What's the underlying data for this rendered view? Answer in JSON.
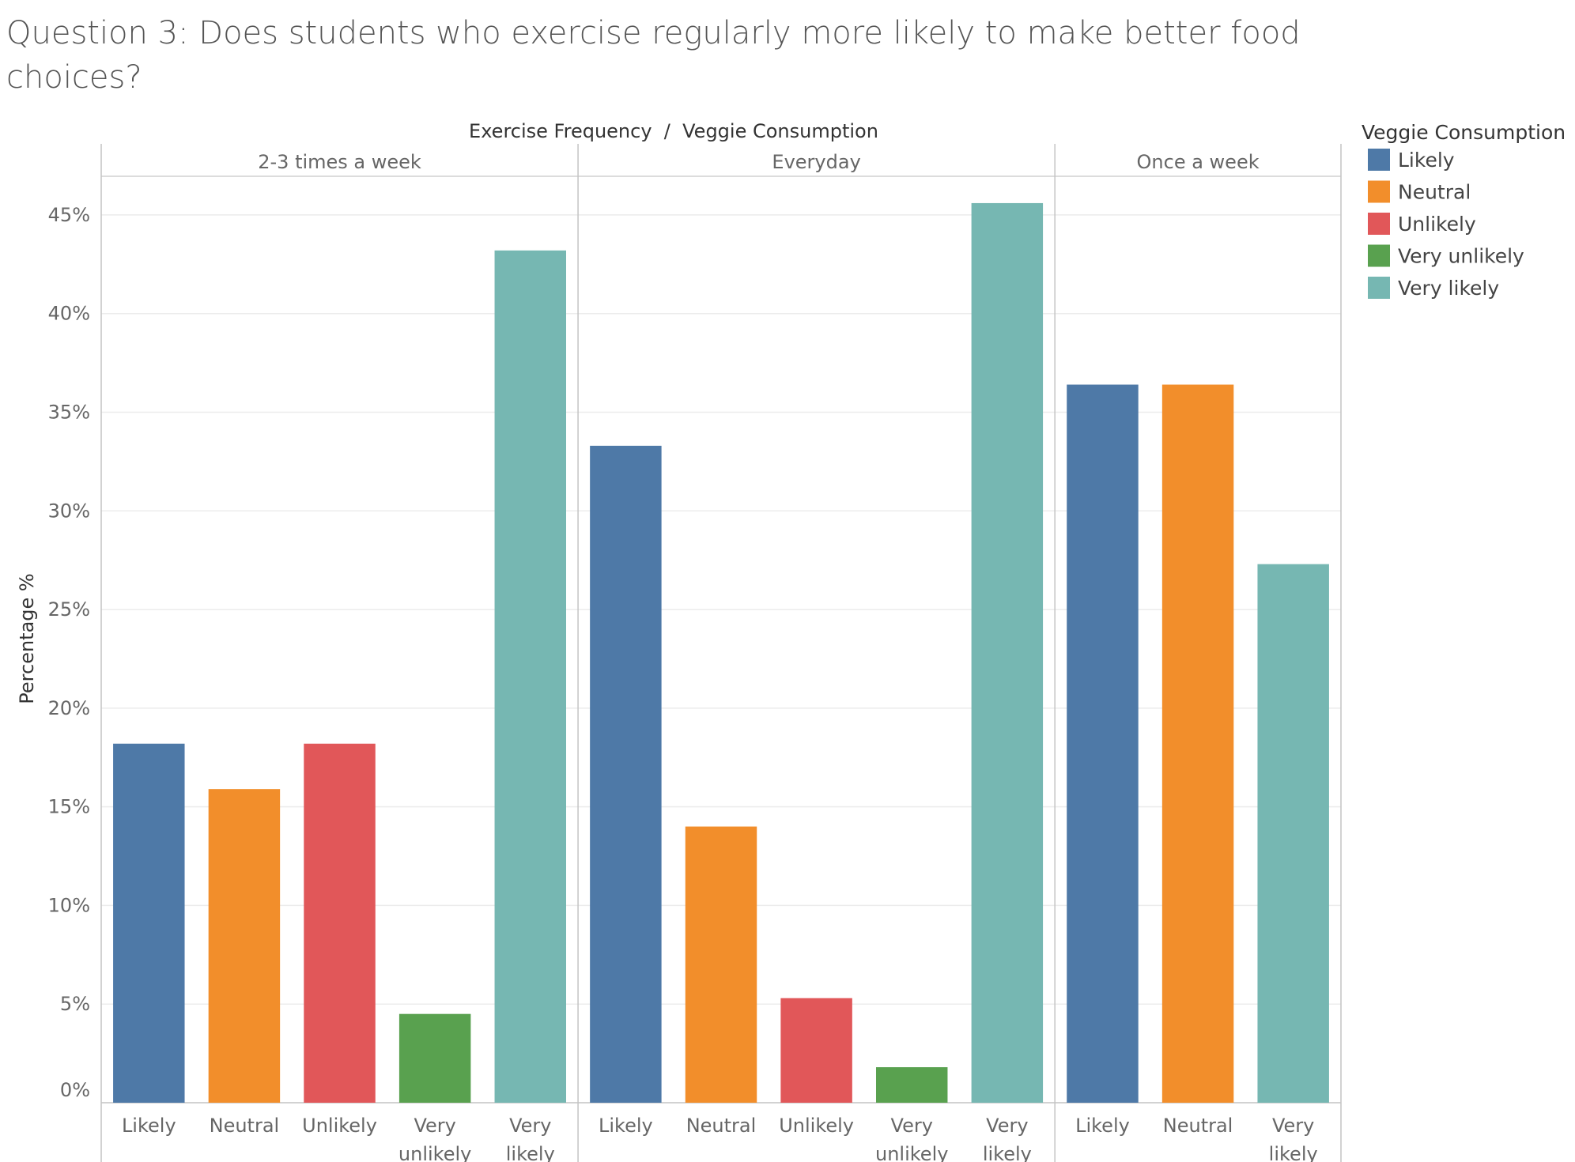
{
  "chart_data": {
    "type": "bar",
    "title": "Question 3: Does students who exercise regularly more likely to make better food choices?",
    "column_header": "Exercise Frequency  /  Veggie Consumption",
    "ylabel": "Percentage %",
    "ylim": [
      0,
      47
    ],
    "yticks": [
      0,
      5,
      10,
      15,
      20,
      25,
      30,
      35,
      40,
      45
    ],
    "ytick_labels": [
      "0%",
      "5%",
      "10%",
      "15%",
      "20%",
      "25%",
      "30%",
      "35%",
      "40%",
      "45%"
    ],
    "grid": true,
    "legend": {
      "title": "Veggie Consumption",
      "placement": "top-right",
      "entries": [
        {
          "name": "Likely",
          "color": "#4e79a7"
        },
        {
          "name": "Neutral",
          "color": "#f28e2b"
        },
        {
          "name": "Unlikely",
          "color": "#e15759"
        },
        {
          "name": "Very unlikely",
          "color": "#59a14f"
        },
        {
          "name": "Very likely",
          "color": "#76b7b2"
        }
      ]
    },
    "panels": [
      {
        "name": "2-3 times a week",
        "categories": [
          {
            "label_lines": [
              "Likely"
            ],
            "series": "Likely",
            "value": 18.2
          },
          {
            "label_lines": [
              "Neutral"
            ],
            "series": "Neutral",
            "value": 15.9
          },
          {
            "label_lines": [
              "Unlikely"
            ],
            "series": "Unlikely",
            "value": 18.2
          },
          {
            "label_lines": [
              "Very",
              "unlikely"
            ],
            "series": "Very unlikely",
            "value": 4.5
          },
          {
            "label_lines": [
              "Very",
              "likely"
            ],
            "series": "Very likely",
            "value": 43.2
          }
        ]
      },
      {
        "name": "Everyday",
        "categories": [
          {
            "label_lines": [
              "Likely"
            ],
            "series": "Likely",
            "value": 33.3
          },
          {
            "label_lines": [
              "Neutral"
            ],
            "series": "Neutral",
            "value": 14.0
          },
          {
            "label_lines": [
              "Unlikely"
            ],
            "series": "Unlikely",
            "value": 5.3
          },
          {
            "label_lines": [
              "Very",
              "unlikely"
            ],
            "series": "Very unlikely",
            "value": 1.8
          },
          {
            "label_lines": [
              "Very",
              "likely"
            ],
            "series": "Very likely",
            "value": 45.6
          }
        ]
      },
      {
        "name": "Once a week",
        "categories": [
          {
            "label_lines": [
              "Likely"
            ],
            "series": "Likely",
            "value": 36.4
          },
          {
            "label_lines": [
              "Neutral"
            ],
            "series": "Neutral",
            "value": 36.4
          },
          {
            "label_lines": [
              "Very",
              "likely"
            ],
            "series": "Very likely",
            "value": 27.3
          }
        ]
      }
    ]
  }
}
